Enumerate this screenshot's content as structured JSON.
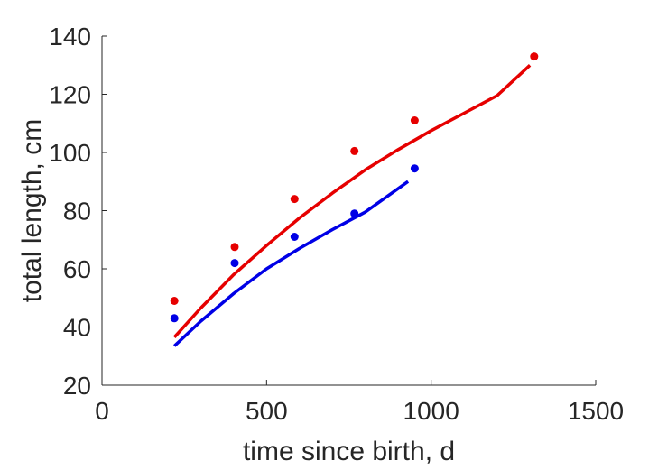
{
  "chart_data": {
    "type": "scatter",
    "title": "",
    "xlabel": "time since birth, d",
    "ylabel": "total length, cm",
    "xlim": [
      0,
      1500
    ],
    "ylim": [
      20,
      140
    ],
    "xticks": [
      0,
      500,
      1000,
      1500
    ],
    "yticks": [
      20,
      40,
      60,
      80,
      100,
      120,
      140
    ],
    "grid": false,
    "legend": "none",
    "series": [
      {
        "kind": "points",
        "color": "#e60000",
        "x": [
          220,
          403,
          585,
          767,
          950,
          1313
        ],
        "y": [
          49,
          67.5,
          84,
          100.5,
          111,
          133
        ]
      },
      {
        "kind": "points",
        "color": "#0000e6",
        "x": [
          220,
          403,
          585,
          767,
          950
        ],
        "y": [
          43,
          62,
          71,
          79,
          94.5
        ]
      },
      {
        "kind": "line",
        "color": "#e60000",
        "x": [
          220,
          300,
          400,
          500,
          600,
          700,
          800,
          900,
          1000,
          1100,
          1200,
          1300
        ],
        "y": [
          36.5,
          46.5,
          58,
          68,
          77.5,
          86,
          94,
          101,
          107.5,
          113.5,
          119.5,
          130
        ]
      },
      {
        "kind": "line",
        "color": "#0000e6",
        "x": [
          220,
          300,
          400,
          500,
          600,
          700,
          800,
          930
        ],
        "y": [
          33.5,
          42,
          51.5,
          60,
          67,
          73.5,
          79.5,
          90
        ]
      }
    ]
  }
}
